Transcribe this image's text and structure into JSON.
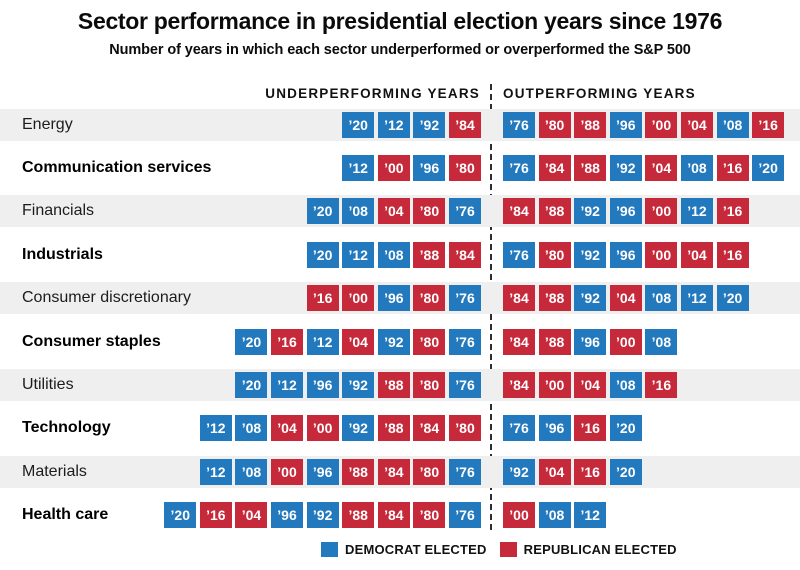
{
  "chart_data": {
    "type": "table",
    "title": "Sector performance in presidential election years since 1976",
    "subtitle": "Number of years in which each sector underperformed or overperformed the S&P 500",
    "column_headers": {
      "under": "UNDERPERFORMING YEARS",
      "out": "OUTPERFORMING YEARS"
    },
    "election_years_all": [
      "’76",
      "’80",
      "’84",
      "’88",
      "’92",
      "’96",
      "’00",
      "’04",
      "’08",
      "’12",
      "’16",
      "’20"
    ],
    "democrat_years": [
      "76",
      "92",
      "96",
      "08",
      "12",
      "20"
    ],
    "republican_years": [
      "80",
      "84",
      "88",
      "00",
      "04",
      "16"
    ],
    "colors": {
      "democrat_blue": "#2379BE",
      "republican_red": "#C5293A",
      "row_stripe": "#EFEFEF",
      "text": "#111111"
    },
    "legend": [
      {
        "label": "DEMOCRAT ELECTED",
        "party": "democrat"
      },
      {
        "label": "REPUBLICAN ELECTED",
        "party": "republican"
      }
    ],
    "rows": [
      {
        "sector": "Energy",
        "bold": false,
        "under": [
          "’20",
          "’12",
          "’92",
          "’84"
        ],
        "out": [
          "’76",
          "’80",
          "’88",
          "’96",
          "’00",
          "’04",
          "’08",
          "’16"
        ]
      },
      {
        "sector": "Communication services",
        "bold": true,
        "under": [
          "’12",
          "’00",
          "’96",
          "’80"
        ],
        "out": [
          "’76",
          "’84",
          "’88",
          "’92",
          "’04",
          "’08",
          "’16",
          "’20"
        ]
      },
      {
        "sector": "Financials",
        "bold": false,
        "under": [
          "’20",
          "’08",
          "’04",
          "’80",
          "’76"
        ],
        "out": [
          "’84",
          "’88",
          "’92",
          "’96",
          "’00",
          "’12",
          "’16"
        ]
      },
      {
        "sector": "Industrials",
        "bold": true,
        "under": [
          "’20",
          "’12",
          "’08",
          "’88",
          "’84"
        ],
        "out": [
          "’76",
          "’80",
          "’92",
          "’96",
          "’00",
          "’04",
          "’16"
        ]
      },
      {
        "sector": "Consumer discretionary",
        "bold": false,
        "under": [
          "’16",
          "’00",
          "’96",
          "’80",
          "’76"
        ],
        "out": [
          "’84",
          "’88",
          "’92",
          "’04",
          "’08",
          "’12",
          "’20"
        ]
      },
      {
        "sector": "Consumer staples",
        "bold": true,
        "under": [
          "’20",
          "’16",
          "’12",
          "’04",
          "’92",
          "’80",
          "’76"
        ],
        "out": [
          "’84",
          "’88",
          "’96",
          "’00",
          "’08"
        ]
      },
      {
        "sector": "Utilities",
        "bold": false,
        "under": [
          "’20",
          "’12",
          "’96",
          "’92",
          "’88",
          "’80",
          "’76"
        ],
        "out": [
          "’84",
          "’00",
          "’04",
          "’08",
          "’16"
        ]
      },
      {
        "sector": "Technology",
        "bold": true,
        "under": [
          "’12",
          "’08",
          "’04",
          "’00",
          "’92",
          "’88",
          "’84",
          "’80"
        ],
        "out": [
          "’76",
          "’96",
          "’16",
          "’20"
        ]
      },
      {
        "sector": "Materials",
        "bold": false,
        "under": [
          "’12",
          "’08",
          "’00",
          "’96",
          "’88",
          "’84",
          "’80",
          "’76"
        ],
        "out": [
          "’92",
          "’04",
          "’16",
          "’20"
        ]
      },
      {
        "sector": "Health care",
        "bold": true,
        "under": [
          "’20",
          "’16",
          "’04",
          "’96",
          "’92",
          "’88",
          "’84",
          "’80",
          "’76"
        ],
        "out": [
          "’00",
          "’08",
          "’12"
        ]
      }
    ]
  }
}
